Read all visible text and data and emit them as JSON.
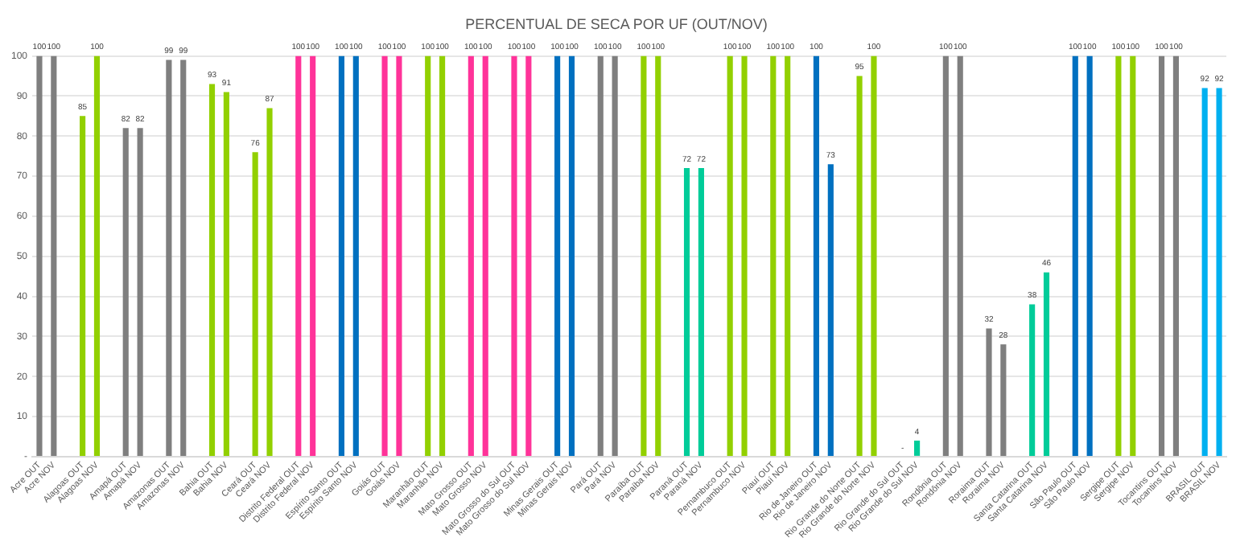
{
  "chart_data": {
    "type": "bar",
    "title": "PERCENTUAL DE SECA POR UF (OUT/NOV)",
    "categories": [
      "Acre OUT",
      "Acre NOV",
      null,
      "Alagoas OUT",
      "Alagoas NOV",
      null,
      "Amapá OUT",
      "Amapá NOV",
      null,
      "Amazonas OUT",
      "Amazonas NOV",
      null,
      "Bahia OUT",
      "Bahia NOV",
      null,
      "Ceará OUT",
      "Ceará NOV",
      null,
      "Distrito Federal OUT",
      "Distrito Federal NOV",
      null,
      "Espírito Santo OUT",
      "Espírito Santo NOV",
      null,
      "Goiás OUT",
      "Goiás NOV",
      null,
      "Maranhão OUT",
      "Maranhão NOV",
      null,
      "Mato Grosso OUT",
      "Mato Grosso NOV",
      null,
      "Mato Grosso do Sul OUT",
      "Mato Grosso do Sul NOV",
      null,
      "Minas Gerais OUT",
      "Minas Gerais NOV",
      null,
      "Pará OUT",
      "Pará NOV",
      null,
      "Paraíba OUT",
      "Paraíba NOV",
      null,
      "Paraná OUT",
      "Paraná NOV",
      null,
      "Pernambuco OUT",
      "Pernambuco NOV",
      null,
      "Piauí OUT",
      "Piauí NOV",
      null,
      "Rio de Janeiro OUT",
      "Rio de Janeiro NOV",
      null,
      "Rio Grande do Norte OUT",
      "Rio Grande do Norte NOV",
      null,
      "Rio Grande do Sul OUT",
      "Rio Grande do Sul NOV",
      null,
      "Rondônia OUT",
      "Rondônia NOV",
      null,
      "Roraima OUT",
      "Roraima NOV",
      null,
      "Santa Catarina OUT",
      "Santa Catarina NOV",
      null,
      "São Paulo OUT",
      "São Paulo NOV",
      null,
      "Sergipe OUT",
      "Sergipe NOV",
      null,
      "Tocantins OUT",
      "Tocantins NOV",
      null,
      "BRASIL OUT",
      "BRASIL NOV"
    ],
    "values": [
      100,
      100,
      null,
      85,
      100,
      null,
      82,
      82,
      null,
      99,
      99,
      null,
      93,
      91,
      null,
      76,
      87,
      null,
      100,
      100,
      null,
      100,
      100,
      null,
      100,
      100,
      null,
      100,
      100,
      null,
      100,
      100,
      null,
      100,
      100,
      null,
      100,
      100,
      null,
      100,
      100,
      null,
      100,
      100,
      null,
      72,
      72,
      null,
      100,
      100,
      null,
      100,
      100,
      null,
      100,
      73,
      null,
      95,
      100,
      null,
      0,
      4,
      null,
      100,
      100,
      null,
      32,
      28,
      null,
      38,
      46,
      null,
      100,
      100,
      null,
      100,
      100,
      null,
      100,
      100,
      null,
      92,
      92
    ],
    "value_labels": [
      "100",
      "100",
      null,
      "85",
      "100",
      null,
      "82",
      "82",
      null,
      "99",
      "99",
      null,
      "93",
      "91",
      null,
      "76",
      "87",
      null,
      "100",
      "100",
      null,
      "100",
      "100",
      null,
      "100",
      "100",
      null,
      "100",
      "100",
      null,
      "100",
      "100",
      null,
      "100",
      "100",
      null,
      "100",
      "100",
      null,
      "100",
      "100",
      null,
      "100",
      "100",
      null,
      "72",
      "72",
      null,
      "100",
      "100",
      null,
      "100",
      "100",
      null,
      "100",
      "73",
      null,
      "95",
      "100",
      null,
      "-",
      "4",
      null,
      "100",
      "100",
      null,
      "32",
      "28",
      null,
      "38",
      "46",
      null,
      "100",
      "100",
      null,
      "100",
      "100",
      null,
      "100",
      "100",
      null,
      "92",
      "92"
    ],
    "colors": [
      "#7f7f7f",
      "#7f7f7f",
      null,
      "#92d000",
      "#92d000",
      null,
      "#7f7f7f",
      "#7f7f7f",
      null,
      "#7f7f7f",
      "#7f7f7f",
      null,
      "#92d000",
      "#92d000",
      null,
      "#92d000",
      "#92d000",
      null,
      "#ff3399",
      "#ff3399",
      null,
      "#0070c0",
      "#0070c0",
      null,
      "#ff3399",
      "#ff3399",
      null,
      "#92d000",
      "#92d000",
      null,
      "#ff3399",
      "#ff3399",
      null,
      "#ff3399",
      "#ff3399",
      null,
      "#0070c0",
      "#0070c0",
      null,
      "#7f7f7f",
      "#7f7f7f",
      null,
      "#92d000",
      "#92d000",
      null,
      "#00cc99",
      "#00cc99",
      null,
      "#92d000",
      "#92d000",
      null,
      "#92d000",
      "#92d000",
      null,
      "#0070c0",
      "#0070c0",
      null,
      "#92d000",
      "#92d000",
      null,
      "#00cc99",
      "#00cc99",
      null,
      "#7f7f7f",
      "#7f7f7f",
      null,
      "#7f7f7f",
      "#7f7f7f",
      null,
      "#00cc99",
      "#00cc99",
      null,
      "#0070c0",
      "#0070c0",
      null,
      "#92d000",
      "#92d000",
      null,
      "#7f7f7f",
      "#7f7f7f",
      null,
      "#00b0f0",
      "#00b0f0"
    ],
    "ylim": [
      0,
      100
    ],
    "yticks": [
      {
        "value": 0,
        "label": "-"
      },
      10,
      20,
      30,
      40,
      50,
      60,
      70,
      80,
      90,
      100
    ],
    "grid": "y"
  }
}
